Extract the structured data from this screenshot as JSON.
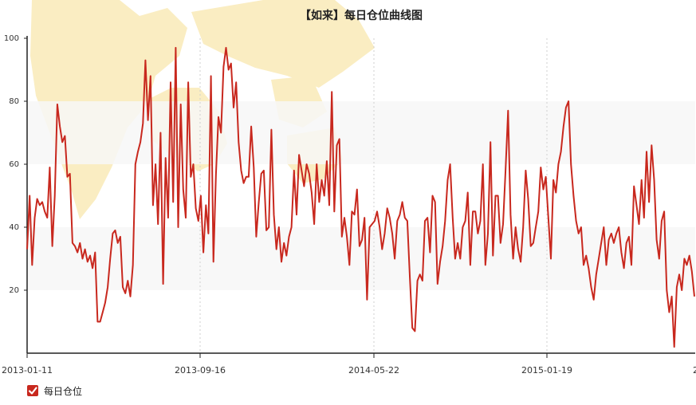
{
  "chart_data": {
    "type": "line",
    "title": "【如来】每日仓位曲线图",
    "ylim": [
      0,
      100
    ],
    "yticks": [
      20,
      40,
      60,
      80,
      100
    ],
    "x_tick_labels": [
      "2013-01-11",
      "2013-09-16",
      "2014-05-22",
      "2015-01-19"
    ],
    "x_last_tick_label": "2",
    "grid": "horizontal bands + dotted vertical lines",
    "colors": {
      "line": "#c8281e",
      "band": "#f7f7f7",
      "map": "#faedc2"
    },
    "series": [
      {
        "name": "每日仓位",
        "values": [
          33,
          50,
          28,
          43,
          49,
          47,
          48,
          45,
          43,
          59,
          34,
          50,
          79,
          72,
          67,
          69,
          56,
          57,
          35,
          34,
          32,
          35,
          30,
          33,
          29,
          31,
          27,
          32,
          10,
          10,
          13,
          16,
          21,
          30,
          38,
          39,
          35,
          37,
          21,
          19,
          23,
          18,
          28,
          60,
          64,
          67,
          73,
          93,
          74,
          88,
          47,
          60,
          41,
          70,
          22,
          62,
          43,
          86,
          48,
          97,
          40,
          79,
          52,
          43,
          86,
          56,
          60,
          46,
          42,
          50,
          32,
          47,
          38,
          88,
          29,
          57,
          75,
          70,
          91,
          97,
          90,
          92,
          78,
          86,
          67,
          58,
          54,
          56,
          56,
          72,
          59,
          37,
          48,
          57,
          58,
          39,
          40,
          71,
          44,
          33,
          40,
          29,
          35,
          31,
          37,
          40,
          58,
          44,
          63,
          58,
          53,
          60,
          57,
          51,
          41,
          60,
          48,
          55,
          50,
          61,
          47,
          83,
          45,
          66,
          68,
          37,
          43,
          37,
          28,
          45,
          44,
          52,
          34,
          36,
          43,
          17,
          40,
          41,
          42,
          45,
          40,
          33,
          38,
          46,
          43,
          38,
          30,
          42,
          44,
          48,
          43,
          42,
          24,
          8,
          7,
          23,
          25,
          23,
          42,
          43,
          32,
          50,
          48,
          22,
          29,
          34,
          42,
          55,
          60,
          43,
          30,
          35,
          30,
          40,
          42,
          51,
          28,
          45,
          45,
          38,
          42,
          60,
          28,
          38,
          67,
          31,
          50,
          50,
          35,
          41,
          58,
          77,
          44,
          30,
          40,
          33,
          29,
          40,
          58,
          49,
          34,
          35,
          40,
          45,
          59,
          52,
          56,
          43,
          30,
          55,
          51,
          60,
          64,
          72,
          78,
          80,
          60,
          50,
          42,
          38,
          40,
          28,
          31,
          27,
          21,
          17,
          25,
          30,
          35,
          40,
          28,
          36,
          38,
          35,
          38,
          40,
          32,
          27,
          35,
          37,
          28,
          53,
          47,
          41,
          55,
          43,
          64,
          48,
          66,
          55,
          36,
          30,
          42,
          45,
          20,
          13,
          18,
          2,
          21,
          25,
          20,
          30,
          28,
          31,
          26,
          18
        ]
      }
    ]
  },
  "legend": {
    "label": "每日仓位"
  }
}
